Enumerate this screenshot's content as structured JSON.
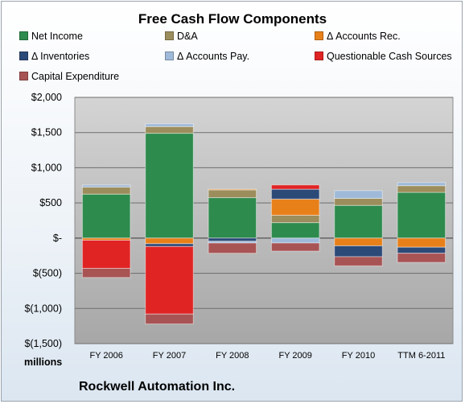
{
  "chart_data": {
    "type": "bar",
    "stacked": true,
    "title": "Free Cash Flow Components",
    "company": "Rockwell Automation Inc.",
    "units": "millions",
    "categories": [
      "FY 2006",
      "FY 2007",
      "FY 2008",
      "FY 2009",
      "FY 2010",
      "TTM 6-2011"
    ],
    "ylim": [
      -1500,
      2000
    ],
    "yticks": [
      2000,
      1500,
      1000,
      500,
      0,
      -500,
      -1000,
      -1500
    ],
    "ytick_labels": [
      "$2,000",
      "$1,500",
      "$1,000",
      "$500",
      "$-",
      "$(500)",
      "$(1,000)",
      "$(1,500)"
    ],
    "grid": true,
    "legend_position": "top",
    "series": [
      {
        "name": "Net Income",
        "color": "#2e8b4e",
        "values": [
          625,
          1490,
          575,
          220,
          465,
          650
        ]
      },
      {
        "name": "D&A",
        "color": "#9c8d5c",
        "values": [
          100,
          95,
          110,
          105,
          100,
          95
        ]
      },
      {
        "name": "Δ Accounts Rec.",
        "color": "#e8801a",
        "values": [
          -30,
          -80,
          10,
          230,
          -110,
          -130
        ]
      },
      {
        "name": "Δ Inventories",
        "color": "#2c4a78",
        "values": [
          0,
          -40,
          -45,
          140,
          -155,
          -85
        ]
      },
      {
        "name": "Δ Accounts Pay.",
        "color": "#9fbad9",
        "values": [
          30,
          40,
          -25,
          -70,
          110,
          45
        ]
      },
      {
        "name": "Questionable Cash Sources",
        "color": "#e02424",
        "values": [
          -400,
          -960,
          0,
          60,
          0,
          0
        ]
      },
      {
        "name": "Capital Expenditure",
        "color": "#a85455",
        "values": [
          -130,
          -140,
          -145,
          -115,
          -130,
          -130
        ]
      }
    ]
  }
}
